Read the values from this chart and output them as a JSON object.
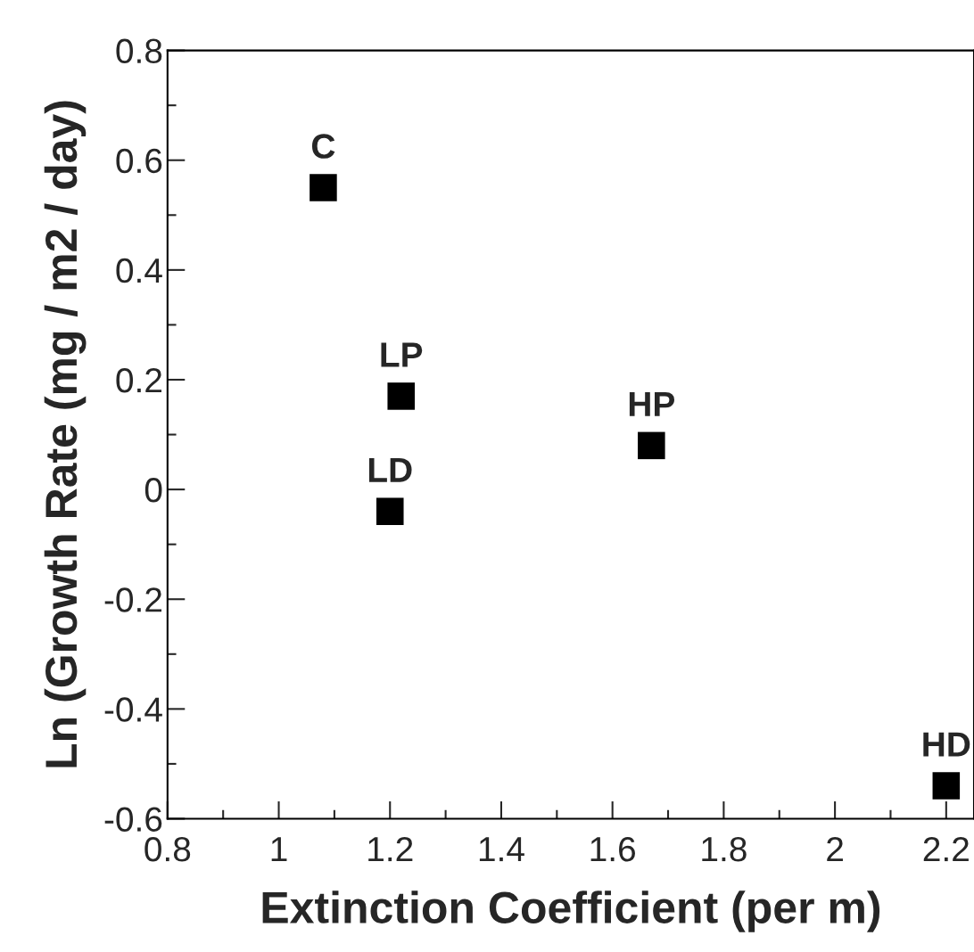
{
  "chart_data": {
    "type": "scatter",
    "xlabel": "Extinction Coefficient (per m)",
    "ylabel": "Ln (Growth Rate (mg / m2 / day)",
    "x": [
      1.08,
      1.22,
      1.2,
      1.67,
      2.2
    ],
    "series": [
      {
        "color": "#000000",
        "values": [
          0.55,
          0.17,
          -0.04,
          0.08,
          -0.54
        ]
      }
    ],
    "marker": "square",
    "annotations": [
      {
        "text": "C",
        "x": 1.08,
        "y": 0.55
      },
      {
        "text": "LP",
        "x": 1.22,
        "y": 0.17
      },
      {
        "text": "LD",
        "x": 1.2,
        "y": -0.04
      },
      {
        "text": "HP",
        "x": 1.67,
        "y": 0.08
      },
      {
        "text": "HD",
        "x": 2.2,
        "y": -0.54
      }
    ],
    "xlim": [
      0.8,
      2.25
    ],
    "xticks": [
      0.8,
      1,
      1.2,
      1.4,
      1.6,
      1.8,
      2,
      2.2
    ],
    "ylim": [
      -0.6,
      0.8
    ],
    "yticks": [
      -0.6,
      -0.4,
      -0.2,
      0,
      0.2,
      0.4,
      0.6,
      0.8
    ]
  }
}
